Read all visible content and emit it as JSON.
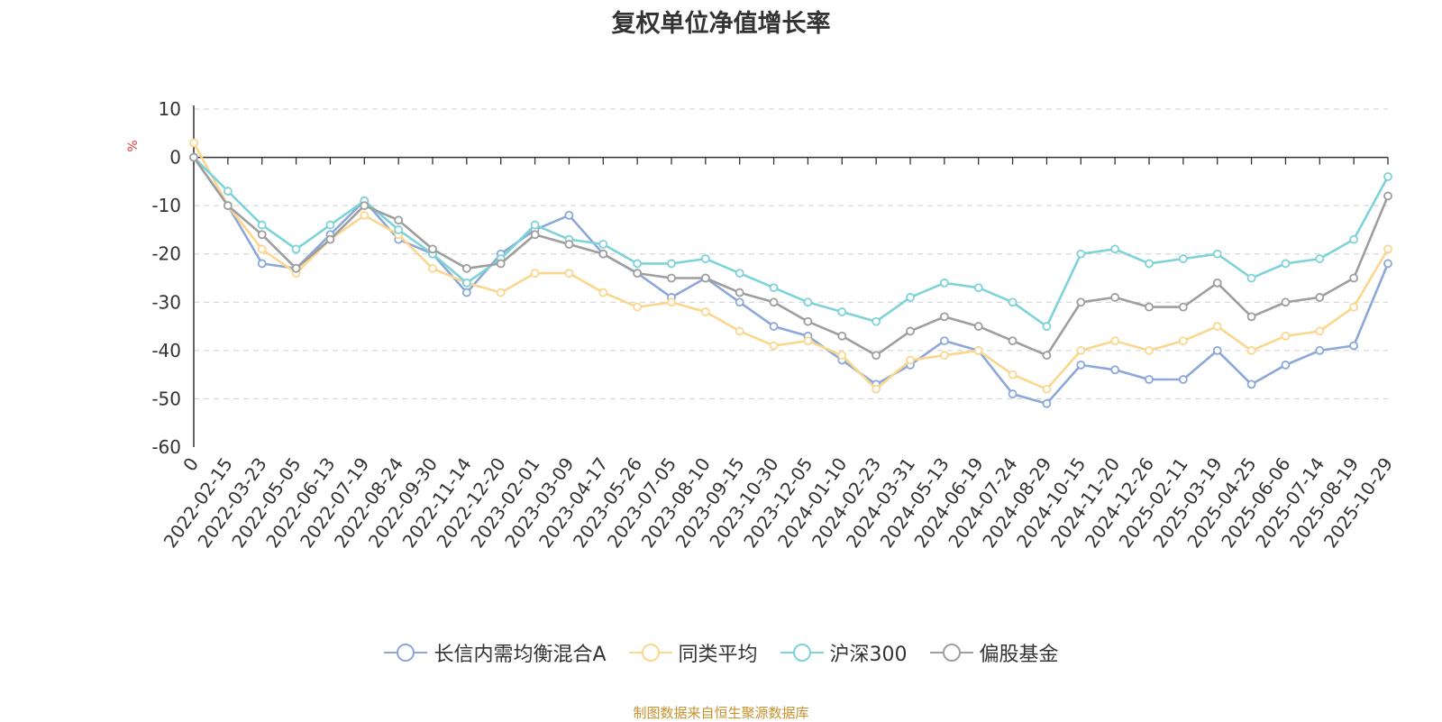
{
  "chart_data": {
    "type": "line",
    "title": "复权单位净值增长率",
    "ylabel": "%",
    "ylim": [
      -60,
      10
    ],
    "yticks": [
      10,
      0,
      -10,
      -20,
      -30,
      -40,
      -50,
      -60
    ],
    "grid": true,
    "categories": [
      "0",
      "2022-02-15",
      "2022-03-23",
      "2022-05-05",
      "2022-06-13",
      "2022-07-19",
      "2022-08-24",
      "2022-09-30",
      "2022-11-14",
      "2022-12-20",
      "2023-02-01",
      "2023-03-09",
      "2023-04-17",
      "2023-05-26",
      "2023-07-05",
      "2023-08-10",
      "2023-09-15",
      "2023-10-30",
      "2023-12-05",
      "2024-01-10",
      "2024-02-23",
      "2024-03-31",
      "2024-05-13",
      "2024-06-19",
      "2024-07-24",
      "2024-08-29",
      "2024-10-15",
      "2024-11-20",
      "2024-12-26",
      "2025-02-11",
      "2025-03-19",
      "2025-04-25",
      "2025-06-06",
      "2025-07-14",
      "2025-08-19",
      "2025-10-29"
    ],
    "legend_position": "bottom",
    "series": [
      {
        "name": "长信内需均衡混合A",
        "color": "#8ba8d8",
        "values": [
          0,
          -10,
          -22,
          -23,
          -16,
          -9,
          -17,
          -20,
          -28,
          -20,
          -15,
          -12,
          -20,
          -24,
          -29,
          -25,
          -30,
          -35,
          -37,
          -42,
          -47,
          -43,
          -38,
          -40,
          -49,
          -51,
          -43,
          -44,
          -46,
          -46,
          -40,
          -47,
          -43,
          -40,
          -39,
          -22
        ]
      },
      {
        "name": "同类平均",
        "color": "#fbd68d",
        "values": [
          3,
          -10,
          -19,
          -24,
          -17,
          -12,
          -16,
          -23,
          -26,
          -28,
          -24,
          -24,
          -28,
          -31,
          -30,
          -32,
          -36,
          -39,
          -38,
          -41,
          -48,
          -42,
          -41,
          -40,
          -45,
          -48,
          -40,
          -38,
          -40,
          -38,
          -35,
          -40,
          -37,
          -36,
          -31,
          -19
        ]
      },
      {
        "name": "沪深300",
        "color": "#7dd3d7",
        "values": [
          0,
          -7,
          -14,
          -19,
          -14,
          -9,
          -15,
          -20,
          -26,
          -21,
          -14,
          -17,
          -18,
          -22,
          -22,
          -21,
          -24,
          -27,
          -30,
          -32,
          -34,
          -29,
          -26,
          -27,
          -30,
          -35,
          -20,
          -19,
          -22,
          -21,
          -20,
          -25,
          -22,
          -21,
          -17,
          -4
        ]
      },
      {
        "name": "偏股基金",
        "color": "#9e9e9e",
        "values": [
          0,
          -10,
          -16,
          -23,
          -17,
          -10,
          -13,
          -19,
          -23,
          -22,
          -16,
          -18,
          -20,
          -24,
          -25,
          -25,
          -28,
          -30,
          -34,
          -37,
          -41,
          -36,
          -33,
          -35,
          -38,
          -41,
          -30,
          -29,
          -31,
          -31,
          -26,
          -33,
          -30,
          -29,
          -25,
          -8
        ]
      }
    ]
  },
  "footer": {
    "source": "制图数据来自恒生聚源数据库"
  }
}
